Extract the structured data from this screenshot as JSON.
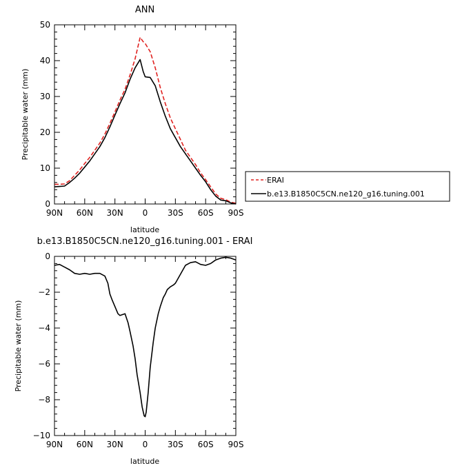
{
  "chart_data": [
    {
      "type": "line",
      "title": "ANN",
      "xlabel": "latitude",
      "ylabel": "Precipitable water (mm)",
      "xlim": [
        90,
        -90
      ],
      "ylim": [
        0,
        50
      ],
      "xticks": [
        90,
        60,
        30,
        0,
        -30,
        -60,
        -90
      ],
      "xtick_labels": [
        "90N",
        "60N",
        "30N",
        "0",
        "30S",
        "60S",
        "90S"
      ],
      "yticks": [
        0,
        10,
        20,
        30,
        40,
        50
      ],
      "ytick_labels": [
        "0",
        "10",
        "20",
        "30",
        "40",
        "50"
      ],
      "grid": false,
      "legend_position": "right",
      "series": [
        {
          "name": "ERAI",
          "color": "#e0211f",
          "style": "dashed",
          "x": [
            90,
            85,
            80,
            75,
            70,
            65,
            60,
            55,
            50,
            45,
            40,
            35,
            30,
            25,
            20,
            15,
            10,
            5,
            2,
            0,
            -5,
            -10,
            -15,
            -20,
            -25,
            -30,
            -35,
            -40,
            -45,
            -50,
            -55,
            -60,
            -65,
            -70,
            -75,
            -80,
            -85,
            -90
          ],
          "values": [
            5.5,
            5.5,
            5.6,
            6.5,
            8.0,
            9.5,
            11.3,
            13.0,
            15.0,
            17.0,
            19.5,
            22.5,
            25.7,
            29.0,
            32.0,
            36.0,
            40.5,
            46.5,
            45.3,
            44.8,
            42.5,
            38.0,
            32.5,
            28.0,
            24.0,
            21.0,
            18.0,
            15.0,
            13.0,
            11.0,
            8.7,
            6.8,
            4.8,
            2.8,
            1.6,
            1.2,
            0.5,
            0.2
          ]
        },
        {
          "name": "b.e13.B1850C5CN.ne120_g16.tuning.001",
          "color": "#000000",
          "style": "solid",
          "x": [
            90,
            85,
            80,
            75,
            70,
            65,
            60,
            55,
            50,
            45,
            40,
            35,
            30,
            25,
            20,
            15,
            10,
            5,
            2,
            0,
            -5,
            -10,
            -15,
            -20,
            -25,
            -30,
            -35,
            -40,
            -45,
            -50,
            -55,
            -60,
            -65,
            -70,
            -75,
            -80,
            -85,
            -90
          ],
          "values": [
            4.8,
            4.9,
            5.0,
            6.0,
            7.2,
            8.6,
            10.3,
            12.0,
            14.0,
            16.0,
            18.5,
            21.5,
            24.8,
            28.0,
            31.0,
            34.8,
            38.0,
            40.3,
            37.0,
            35.5,
            35.3,
            33.0,
            28.5,
            24.5,
            21.0,
            18.5,
            16.0,
            14.0,
            12.0,
            10.0,
            8.0,
            6.2,
            4.0,
            2.2,
            1.1,
            0.9,
            0.3,
            0.0
          ]
        }
      ]
    },
    {
      "type": "line",
      "title": "b.e13.B1850C5CN.ne120_g16.tuning.001 - ERAI",
      "xlabel": "latitude",
      "ylabel": "Precipitable water (mm)",
      "xlim": [
        90,
        -90
      ],
      "ylim": [
        -10,
        0
      ],
      "xticks": [
        90,
        60,
        30,
        0,
        -30,
        -60,
        -90
      ],
      "xtick_labels": [
        "90N",
        "60N",
        "30N",
        "0",
        "30S",
        "60S",
        "90S"
      ],
      "yticks": [
        -10,
        -8,
        -6,
        -4,
        -2,
        0
      ],
      "ytick_labels": [
        "−10",
        "−8",
        "−6",
        "−4",
        "−2",
        "0"
      ],
      "grid": false,
      "series": [
        {
          "color": "#000000",
          "style": "solid",
          "x": [
            90,
            85,
            80,
            75,
            70,
            65,
            60,
            55,
            50,
            45,
            40,
            37,
            35,
            33,
            30,
            27,
            25,
            20,
            17,
            15,
            12,
            10,
            8,
            5,
            3,
            1,
            0,
            -1,
            -3,
            -5,
            -8,
            -10,
            -13,
            -15,
            -18,
            -20,
            -22,
            -25,
            -28,
            -30,
            -35,
            -40,
            -45,
            -50,
            -55,
            -60,
            -65,
            -70,
            -75,
            -80,
            -85,
            -90
          ],
          "values": [
            -0.5,
            -0.45,
            -0.6,
            -0.75,
            -0.95,
            -1.0,
            -0.95,
            -1.0,
            -0.95,
            -0.95,
            -1.1,
            -1.5,
            -2.1,
            -2.4,
            -2.8,
            -3.2,
            -3.3,
            -3.2,
            -3.7,
            -4.2,
            -5.0,
            -5.7,
            -6.6,
            -7.6,
            -8.4,
            -8.9,
            -8.95,
            -8.7,
            -7.6,
            -6.2,
            -4.8,
            -4.0,
            -3.2,
            -2.8,
            -2.3,
            -2.1,
            -1.85,
            -1.7,
            -1.6,
            -1.5,
            -1.0,
            -0.5,
            -0.35,
            -0.3,
            -0.45,
            -0.5,
            -0.4,
            -0.2,
            -0.1,
            -0.05,
            -0.1,
            -0.2
          ]
        }
      ]
    }
  ]
}
